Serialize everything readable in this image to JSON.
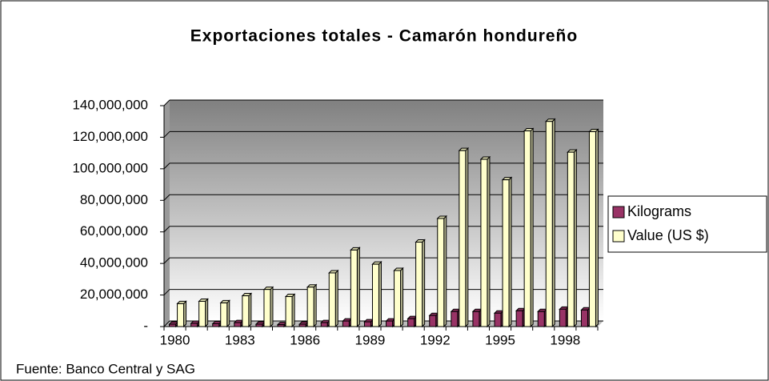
{
  "chart_data": {
    "type": "bar",
    "title": "Exportaciones totales - Camarón hondureño",
    "source": "Fuente: Banco Central y SAG",
    "categories": [
      "1980",
      null,
      null,
      "1983",
      null,
      null,
      "1986",
      null,
      null,
      "1989",
      null,
      null,
      "1992",
      null,
      null,
      "1995",
      null,
      null,
      "1998",
      null
    ],
    "series": [
      {
        "name": "Kilograms",
        "color": "#993366",
        "values": [
          1500000,
          2000000,
          1800000,
          2500000,
          1500000,
          1200000,
          1500000,
          2500000,
          3500000,
          3000000,
          3500000,
          5000000,
          7000000,
          9500000,
          9500000,
          8500000,
          10000000,
          9500000,
          11000000,
          10500000
        ]
      },
      {
        "name": "Value (US $)",
        "color": "#ffffcc",
        "values": [
          14500000,
          16000000,
          15000000,
          19500000,
          23500000,
          19000000,
          25000000,
          34000000,
          48500000,
          39500000,
          35500000,
          53500000,
          68500000,
          111500000,
          106000000,
          93000000,
          124000000,
          130000000,
          110500000,
          123500000
        ]
      }
    ],
    "ylim": [
      0,
      140000000
    ],
    "yticks": [
      {
        "value": 0,
        "label": "-"
      },
      {
        "value": 20000000,
        "label": "20,000,000"
      },
      {
        "value": 40000000,
        "label": "40,000,000"
      },
      {
        "value": 60000000,
        "label": "60,000,000"
      },
      {
        "value": 80000000,
        "label": "80,000,000"
      },
      {
        "value": 100000000,
        "label": "100,000,000"
      },
      {
        "value": 120000000,
        "label": "120,000,000"
      },
      {
        "value": 140000000,
        "label": "140,000,000"
      }
    ],
    "grid": true,
    "legend": "right"
  }
}
